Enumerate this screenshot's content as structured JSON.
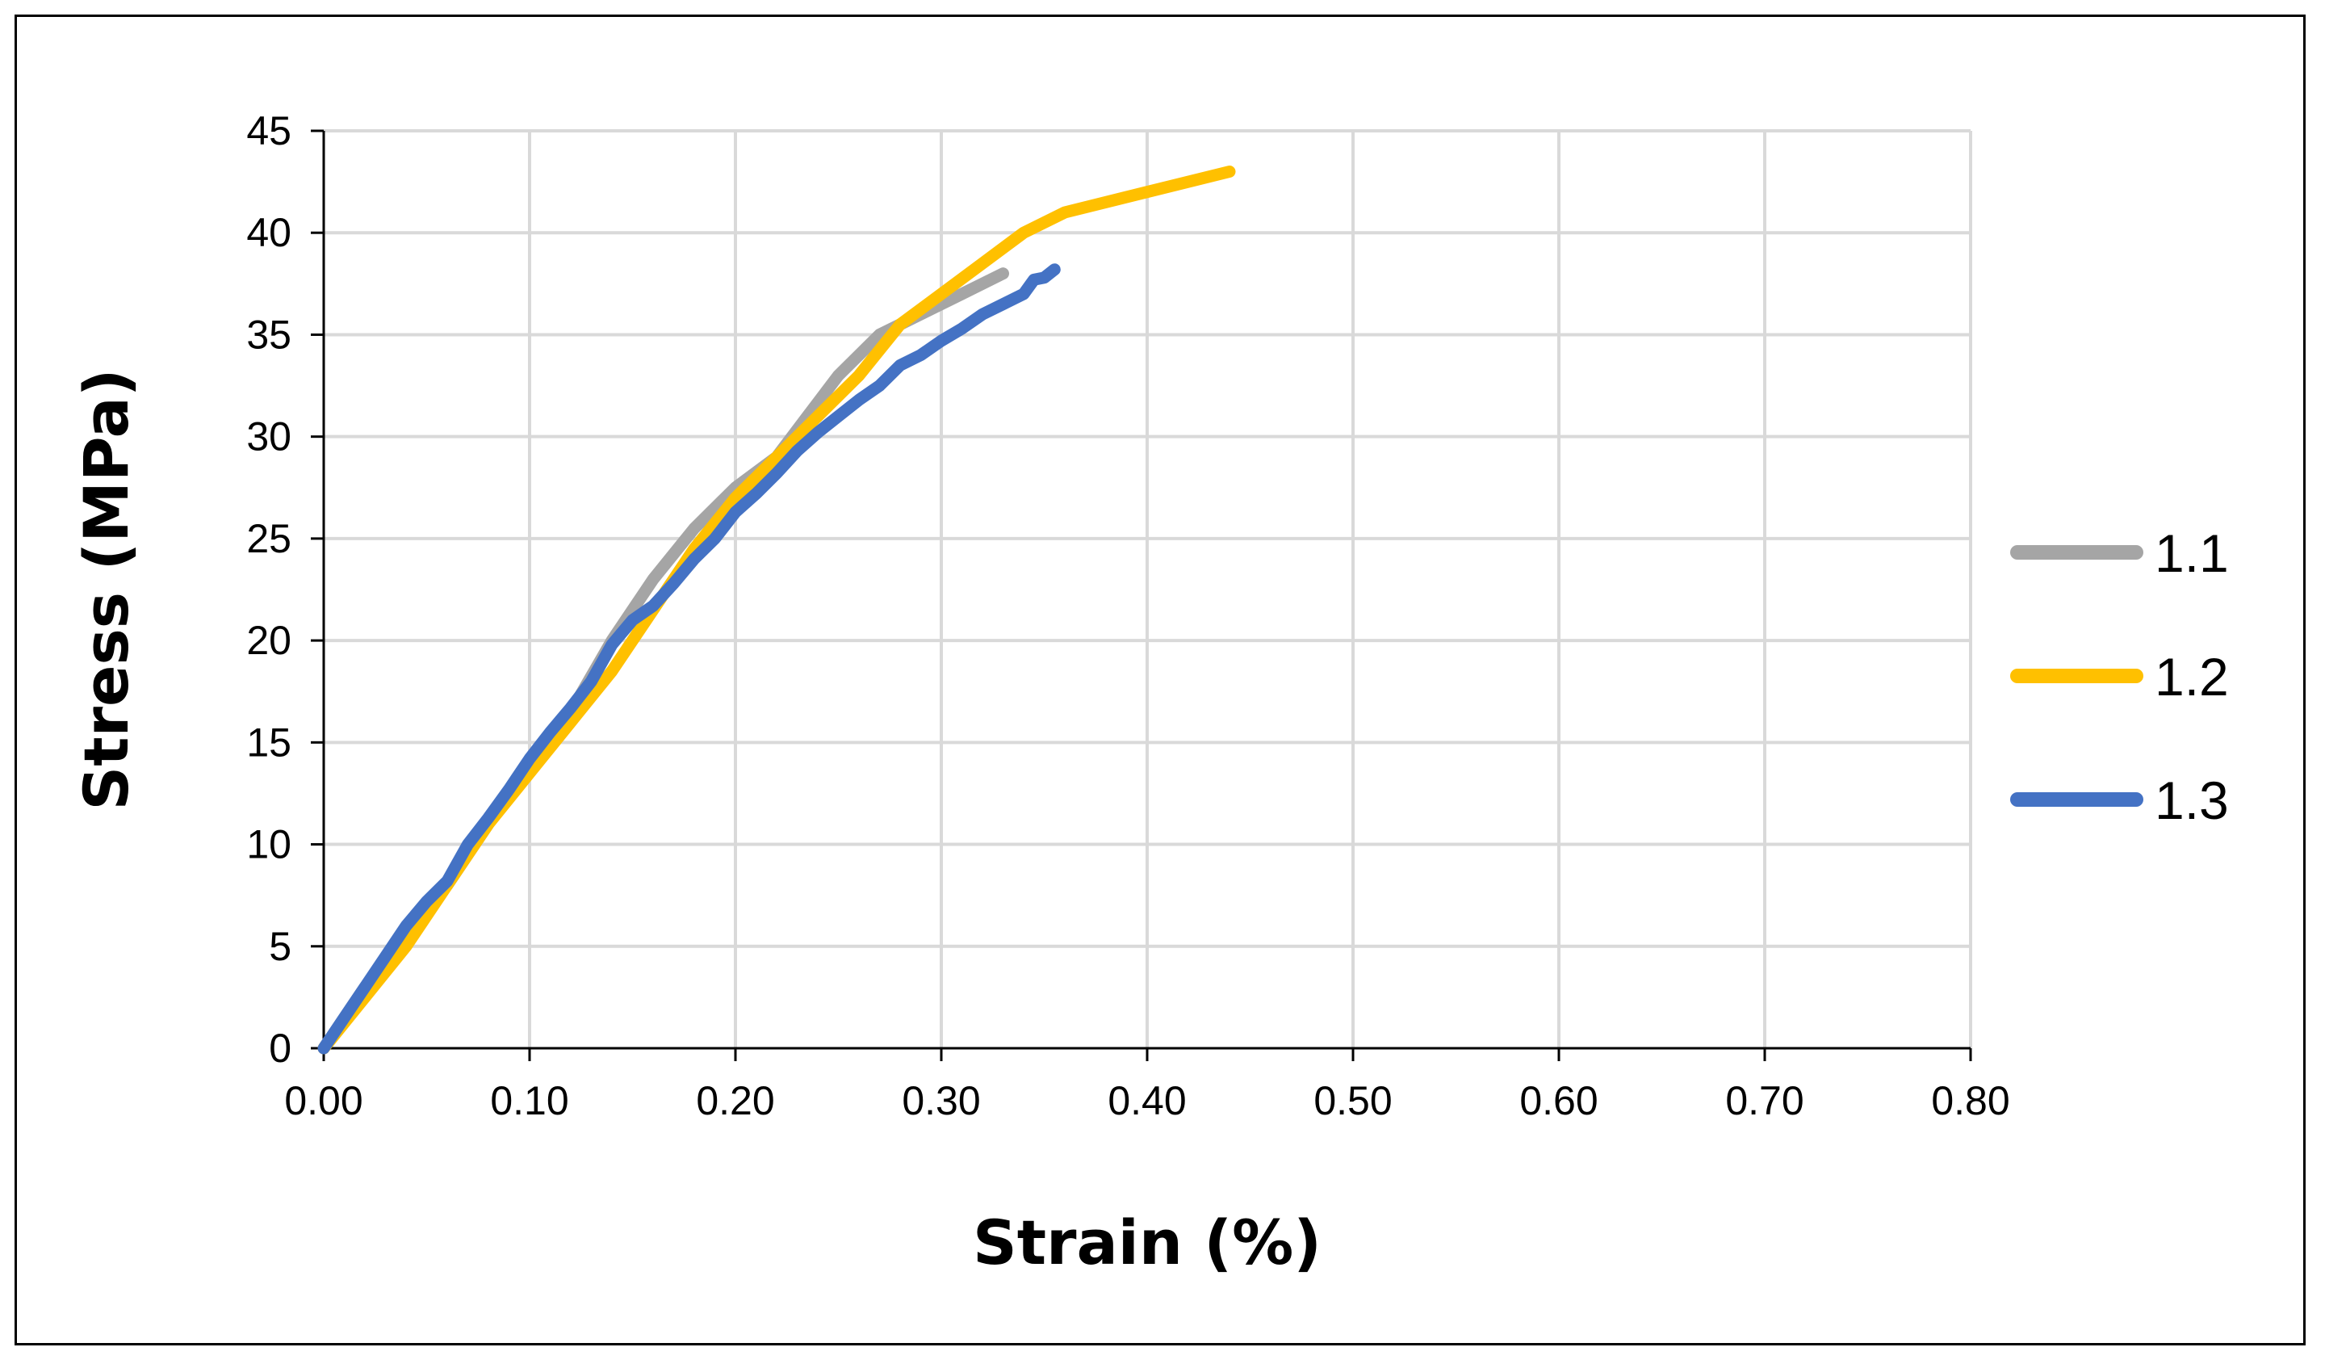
{
  "chart_data": {
    "type": "line",
    "title": "",
    "xlabel": "Strain (%)",
    "ylabel": "Stress (MPa)",
    "xlim": [
      0,
      0.8
    ],
    "ylim": [
      0,
      45
    ],
    "x_ticks": [
      "0.00",
      "0.10",
      "0.20",
      "0.30",
      "0.40",
      "0.50",
      "0.60",
      "0.70",
      "0.80"
    ],
    "y_ticks": [
      "0",
      "5",
      "10",
      "15",
      "20",
      "25",
      "30",
      "35",
      "40",
      "45"
    ],
    "grid": true,
    "legend_position": "right",
    "series": [
      {
        "name": "1.1",
        "color": "#A5A5A5",
        "points": [
          [
            0,
            0
          ],
          [
            0.02,
            3
          ],
          [
            0.04,
            5.5
          ],
          [
            0.06,
            8
          ],
          [
            0.08,
            11
          ],
          [
            0.1,
            14
          ],
          [
            0.12,
            16.5
          ],
          [
            0.14,
            20
          ],
          [
            0.16,
            23
          ],
          [
            0.18,
            25.5
          ],
          [
            0.2,
            27.5
          ],
          [
            0.22,
            29
          ],
          [
            0.235,
            31
          ],
          [
            0.25,
            33
          ],
          [
            0.27,
            35
          ],
          [
            0.29,
            36
          ],
          [
            0.31,
            37
          ],
          [
            0.33,
            38
          ]
        ]
      },
      {
        "name": "1.2",
        "color": "#FFC000",
        "points": [
          [
            0,
            0
          ],
          [
            0.02,
            2.5
          ],
          [
            0.04,
            5
          ],
          [
            0.06,
            8
          ],
          [
            0.08,
            11
          ],
          [
            0.1,
            13.5
          ],
          [
            0.12,
            16
          ],
          [
            0.14,
            18.5
          ],
          [
            0.16,
            21.5
          ],
          [
            0.18,
            24.5
          ],
          [
            0.2,
            27
          ],
          [
            0.22,
            29
          ],
          [
            0.24,
            31
          ],
          [
            0.26,
            33
          ],
          [
            0.28,
            35.5
          ],
          [
            0.3,
            37
          ],
          [
            0.32,
            38.5
          ],
          [
            0.34,
            40
          ],
          [
            0.36,
            41
          ],
          [
            0.4,
            42
          ],
          [
            0.44,
            43
          ]
        ]
      },
      {
        "name": "1.3",
        "color": "#4472C4",
        "points": [
          [
            0,
            0
          ],
          [
            0.01,
            1.5
          ],
          [
            0.02,
            3
          ],
          [
            0.03,
            4.5
          ],
          [
            0.04,
            6
          ],
          [
            0.05,
            7.2
          ],
          [
            0.06,
            8.2
          ],
          [
            0.07,
            10
          ],
          [
            0.08,
            11.3
          ],
          [
            0.09,
            12.7
          ],
          [
            0.1,
            14.2
          ],
          [
            0.11,
            15.5
          ],
          [
            0.12,
            16.7
          ],
          [
            0.13,
            18
          ],
          [
            0.14,
            19.8
          ],
          [
            0.15,
            21
          ],
          [
            0.16,
            21.7
          ],
          [
            0.17,
            22.8
          ],
          [
            0.18,
            24
          ],
          [
            0.19,
            25
          ],
          [
            0.2,
            26.3
          ],
          [
            0.21,
            27.2
          ],
          [
            0.22,
            28.2
          ],
          [
            0.23,
            29.3
          ],
          [
            0.24,
            30.2
          ],
          [
            0.25,
            31
          ],
          [
            0.26,
            31.8
          ],
          [
            0.27,
            32.5
          ],
          [
            0.28,
            33.5
          ],
          [
            0.29,
            34
          ],
          [
            0.3,
            34.7
          ],
          [
            0.31,
            35.3
          ],
          [
            0.32,
            36
          ],
          [
            0.33,
            36.5
          ],
          [
            0.34,
            37
          ],
          [
            0.345,
            37.7
          ],
          [
            0.35,
            37.8
          ],
          [
            0.355,
            38.2
          ]
        ]
      }
    ]
  }
}
